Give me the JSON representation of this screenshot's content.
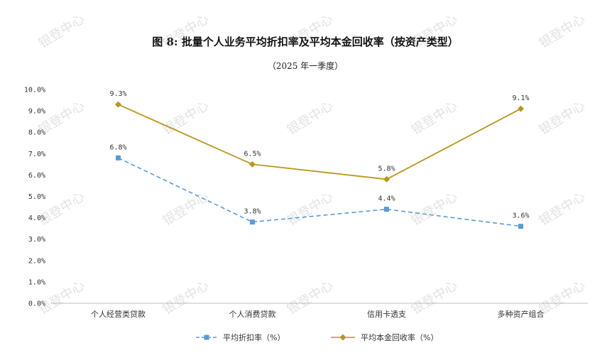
{
  "watermark": "银登中心",
  "chart_data": {
    "type": "line",
    "title": "图 8:  批量个人业务平均折扣率及平均本金回收率（按资产类型）",
    "subtitle": "（2025 年一季度）",
    "categories": [
      "个人经营类贷款",
      "个人消费贷款",
      "信用卡透支",
      "多种资产组合"
    ],
    "ylim": [
      0,
      10
    ],
    "yticks": [
      "0.0%",
      "1.0%",
      "2.0%",
      "3.0%",
      "4.0%",
      "5.0%",
      "6.0%",
      "7.0%",
      "8.0%",
      "9.0%",
      "10.0%"
    ],
    "series": [
      {
        "name": "平均折扣率（%）",
        "values": [
          6.8,
          3.8,
          4.4,
          3.6
        ],
        "labels": [
          "6.8%",
          "3.8%",
          "4.4%",
          "3.6%"
        ],
        "color": "#5b9bd5",
        "style": "dashed",
        "marker": "square"
      },
      {
        "name": "平均本金回收率（%）",
        "values": [
          9.3,
          6.5,
          5.8,
          9.1
        ],
        "labels": [
          "9.3%",
          "6.5%",
          "5.8%",
          "9.1%"
        ],
        "color": "#b8961e",
        "style": "solid",
        "marker": "diamond"
      }
    ],
    "grid": false,
    "legend": "bottom"
  }
}
